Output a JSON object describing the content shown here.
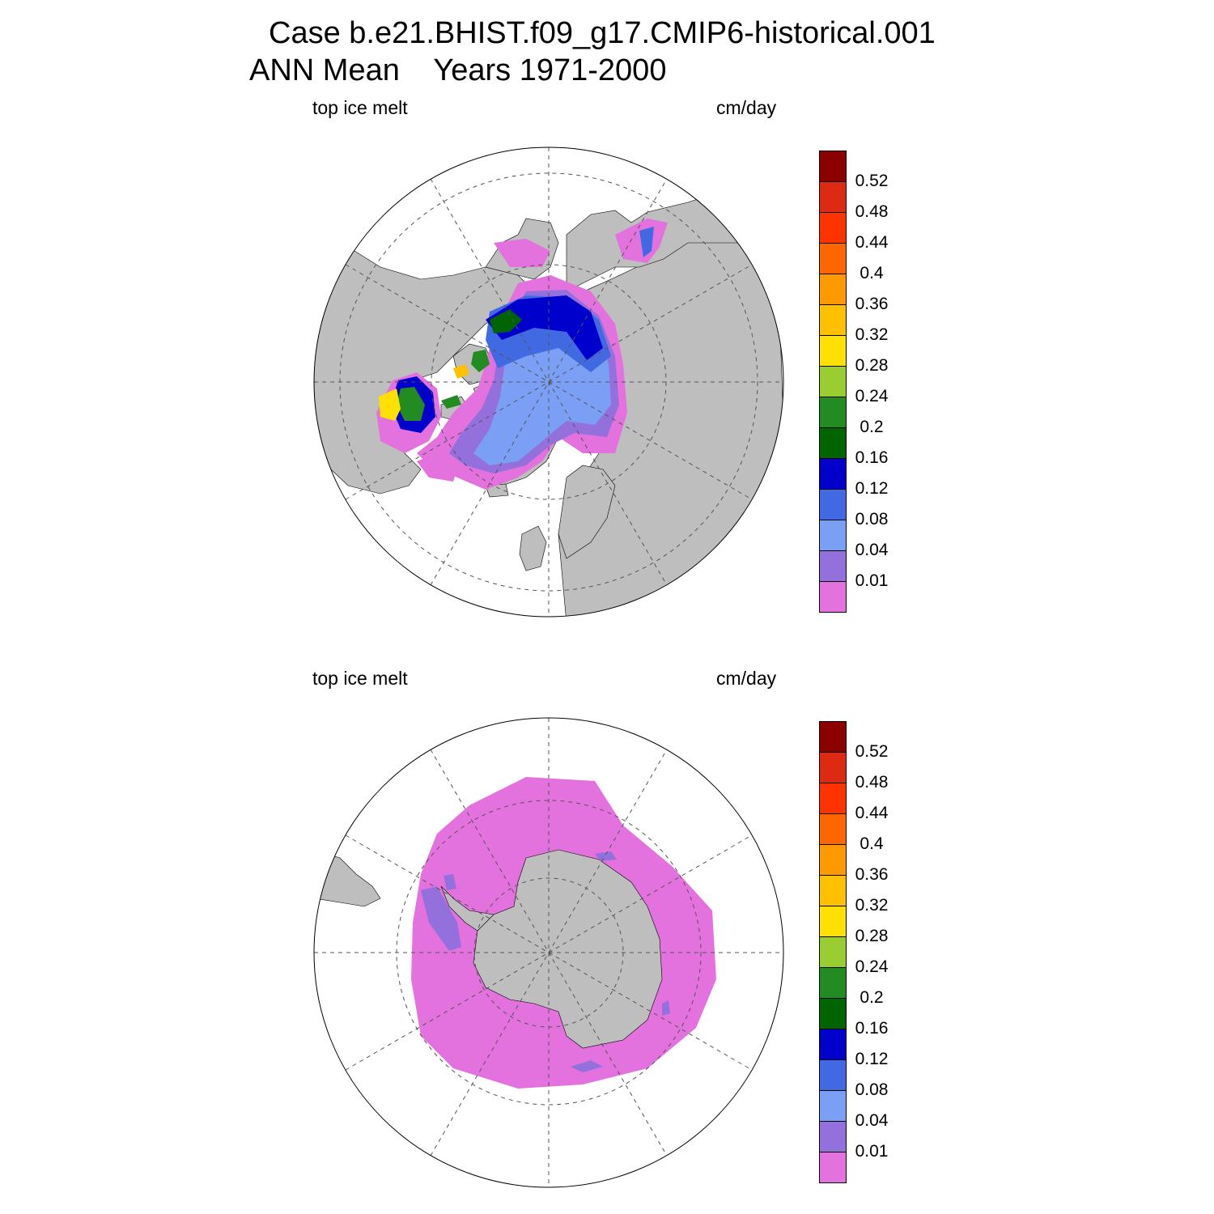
{
  "title": {
    "line1": "Case b.e21.BHIST.f09_g17.CMIP6-historical.001",
    "line2": "ANN Mean    Years 1971-2000"
  },
  "panels": [
    {
      "name": "north",
      "left_label": "top ice melt",
      "right_label": "cm/day"
    },
    {
      "name": "south",
      "left_label": "top ice melt",
      "right_label": "cm/day"
    }
  ],
  "colorbar": {
    "colors": [
      "#e371de",
      "#9370db",
      "#7b9ff5",
      "#4169e1",
      "#0000cd",
      "#006400",
      "#228b22",
      "#9acd32",
      "#ffe000",
      "#ffc000",
      "#ff9900",
      "#ff6600",
      "#ff3300",
      "#dd2a12",
      "#8b0000"
    ],
    "ticks": [
      "0.01",
      "0.04",
      "0.08",
      "0.12",
      "0.16",
      "0.2",
      "0.24",
      "0.28",
      "0.32",
      "0.36",
      "0.4",
      "0.44",
      "0.48",
      "0.52"
    ]
  },
  "colors": {
    "land": "#bebebe",
    "ocean": "#ffffff",
    "grid": "#555555"
  }
}
